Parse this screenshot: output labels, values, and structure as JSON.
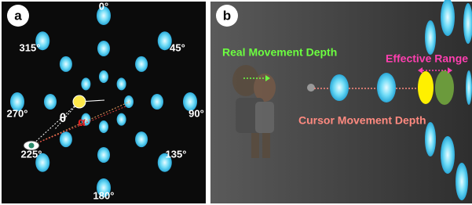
{
  "panels": [
    {
      "label": "a",
      "angle_labels": [
        "0°",
        "45°",
        "90°",
        "135°",
        "180°",
        "225°",
        "270°",
        "315°"
      ],
      "theta": "θ",
      "alpha": "α"
    },
    {
      "label": "b",
      "real_movement": "Real Movement Depth",
      "effective_range": "Effective Range",
      "cursor_movement": "Cursor Movement Depth"
    }
  ]
}
